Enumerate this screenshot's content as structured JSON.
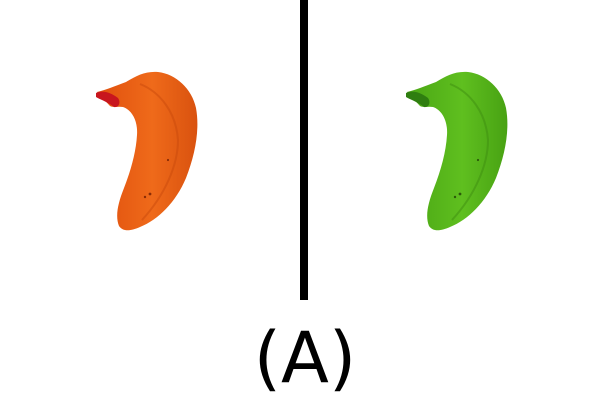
{
  "caption": {
    "label": "(A)"
  },
  "panels": [
    {
      "name": "left",
      "object": "banana",
      "color": "#E85D12",
      "tip_color": "#C8161E"
    },
    {
      "name": "right",
      "object": "banana",
      "color": "#54B31A",
      "tip_color": "#2F7E10"
    }
  ],
  "divider": {
    "color": "#000000"
  }
}
